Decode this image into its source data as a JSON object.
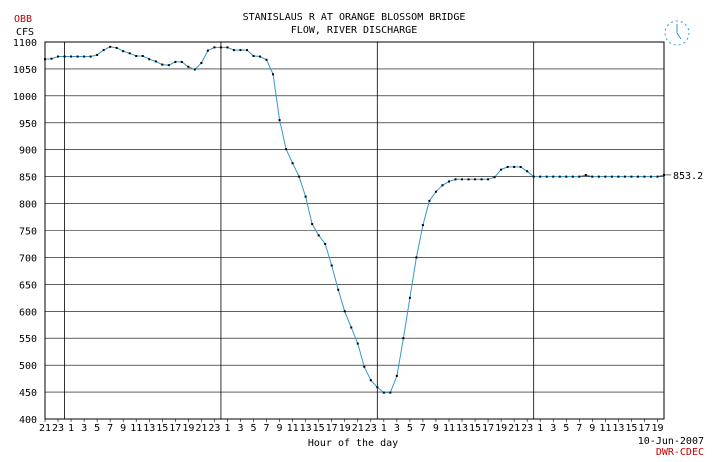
{
  "chart_data": {
    "type": "line",
    "station_code": "OBB",
    "title": "STANISLAUS R AT ORANGE BLOSSOM BRIDGE",
    "subtitle": "FLOW, RIVER DISCHARGE",
    "ylabel": "CFS",
    "xlabel": "Hour of the day",
    "date_label": "10-Jun-2007",
    "source_label": "DWR-CDEC",
    "last_value_label": "853.2",
    "ylim": [
      400,
      1100
    ],
    "ytick_step": 50,
    "grid": true,
    "line_color": "#3399cc",
    "marker_color": "#000000",
    "x_tick_labels": [
      "21",
      "23",
      "1",
      "3",
      "5",
      "7",
      "9",
      "11",
      "13",
      "15",
      "17",
      "19",
      "21",
      "23",
      "1",
      "3",
      "5",
      "7",
      "9",
      "11",
      "13",
      "15",
      "17",
      "19",
      "21",
      "23",
      "1",
      "3",
      "5",
      "7",
      "9",
      "11",
      "13",
      "15",
      "17",
      "19",
      "21",
      "23",
      "1",
      "3",
      "5",
      "7",
      "9",
      "11",
      "13",
      "15",
      "17",
      "19"
    ],
    "x_tick_start_hour": 21,
    "day_boundaries_hours": [
      3,
      27,
      51,
      75
    ],
    "x_start_hour": 0,
    "x_end_hour": 95,
    "series": [
      {
        "values": [
          1068,
          1069,
          1073,
          1073,
          1073,
          1073,
          1073,
          1073,
          1076,
          1085,
          1091,
          1089,
          1083,
          1079,
          1074,
          1074,
          1068,
          1064,
          1058,
          1057,
          1063,
          1063,
          1054,
          1049,
          1061,
          1084,
          1090,
          1090,
          1090,
          1085,
          1085,
          1085,
          1074,
          1073,
          1067,
          1040,
          955,
          901,
          875,
          850,
          813,
          762,
          741,
          725,
          685,
          640,
          600,
          570,
          540,
          497,
          472,
          459,
          449,
          449,
          480,
          550,
          625,
          700,
          760,
          805,
          822,
          834,
          841,
          845,
          845,
          845,
          845,
          845,
          845,
          849,
          863,
          868,
          868,
          868,
          860,
          850,
          850,
          850,
          850,
          850,
          850,
          850,
          850,
          853,
          850,
          850,
          850,
          850,
          850,
          850,
          850,
          850,
          850,
          850,
          850,
          853.2
        ]
      }
    ]
  }
}
